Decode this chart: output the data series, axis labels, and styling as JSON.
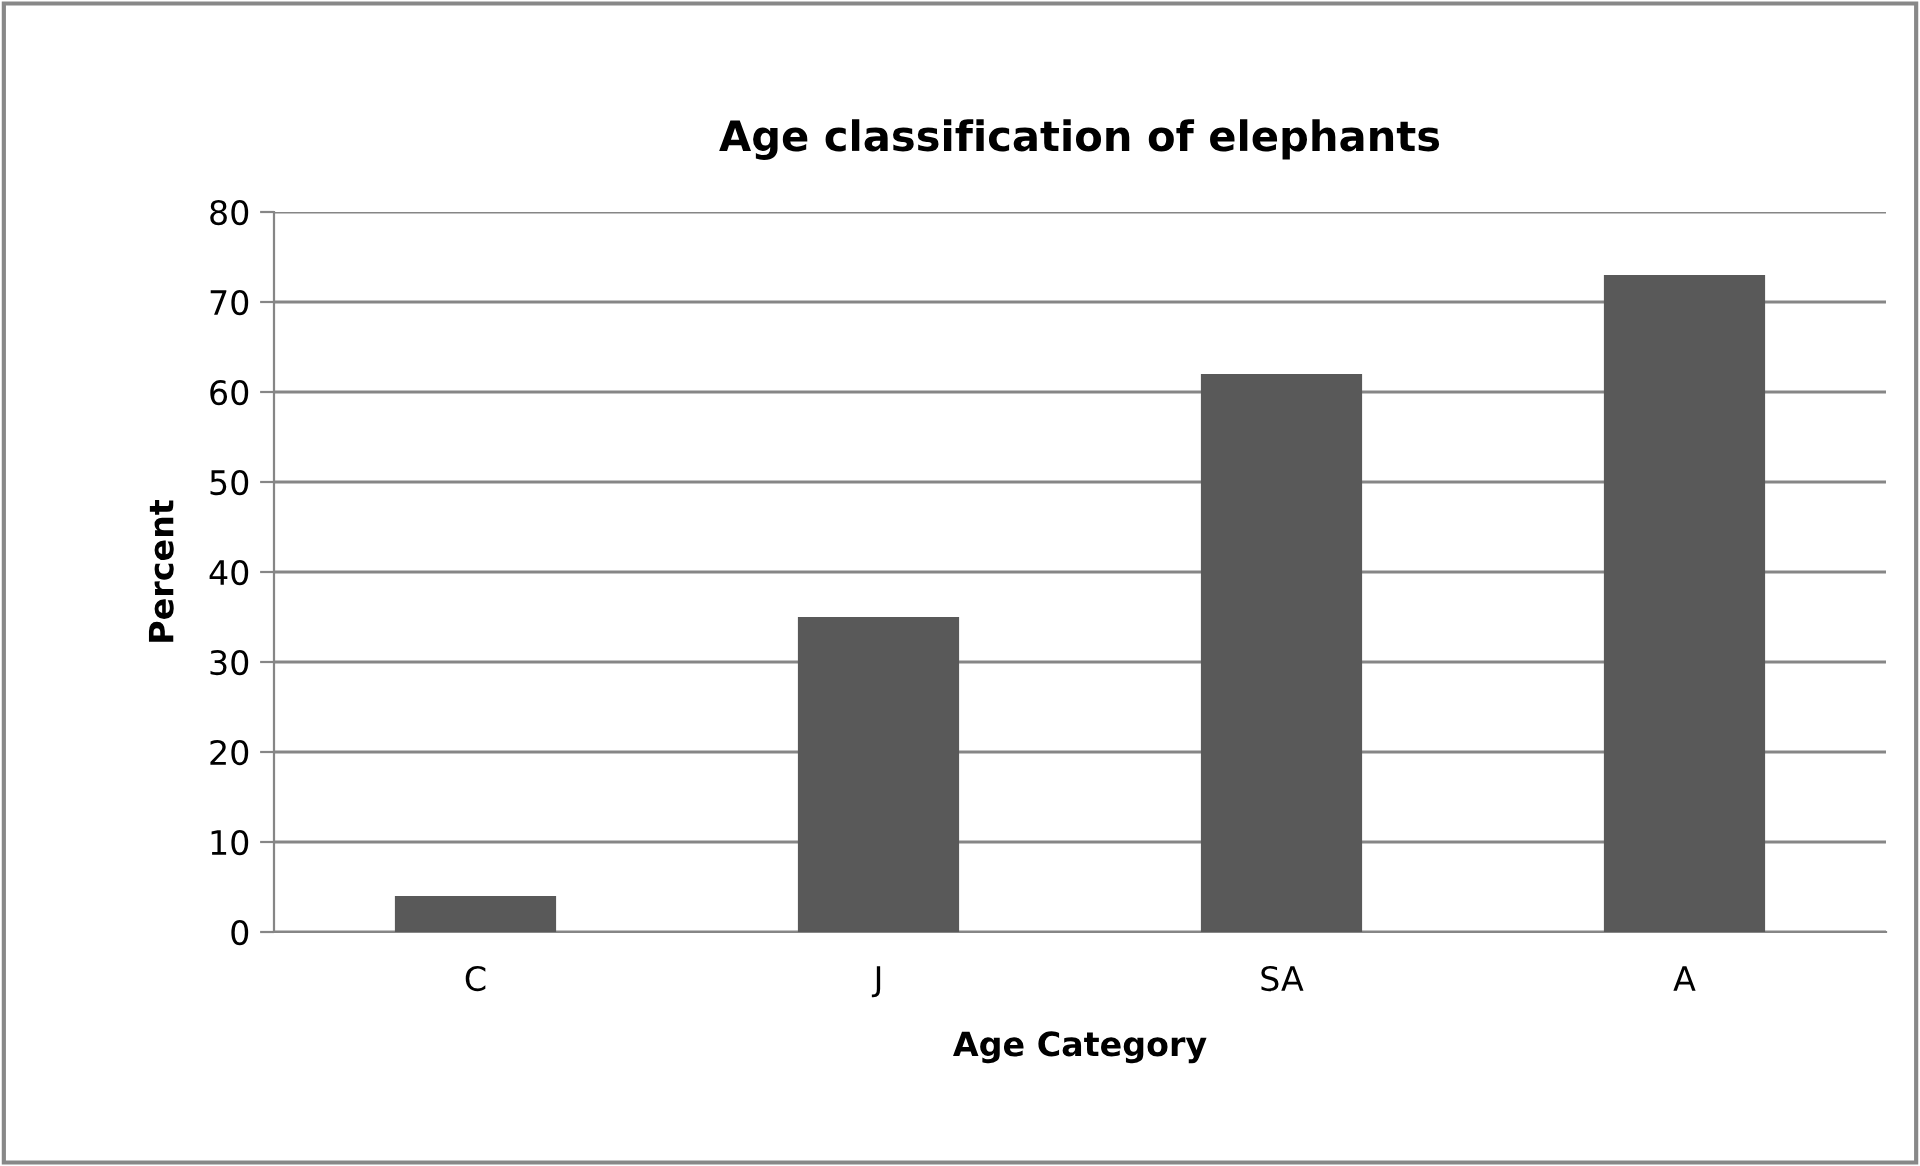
{
  "chart_data": {
    "type": "bar",
    "title": "Age classification of elephants",
    "xlabel": "Age Category",
    "ylabel": "Percent",
    "categories": [
      "C",
      "J",
      "SA",
      "A"
    ],
    "values": [
      4,
      35,
      62,
      73
    ],
    "color": "#595959",
    "ylim": [
      0,
      80
    ],
    "yticks": [
      0,
      10,
      20,
      30,
      40,
      50,
      60,
      70,
      80
    ],
    "grid": "y"
  }
}
